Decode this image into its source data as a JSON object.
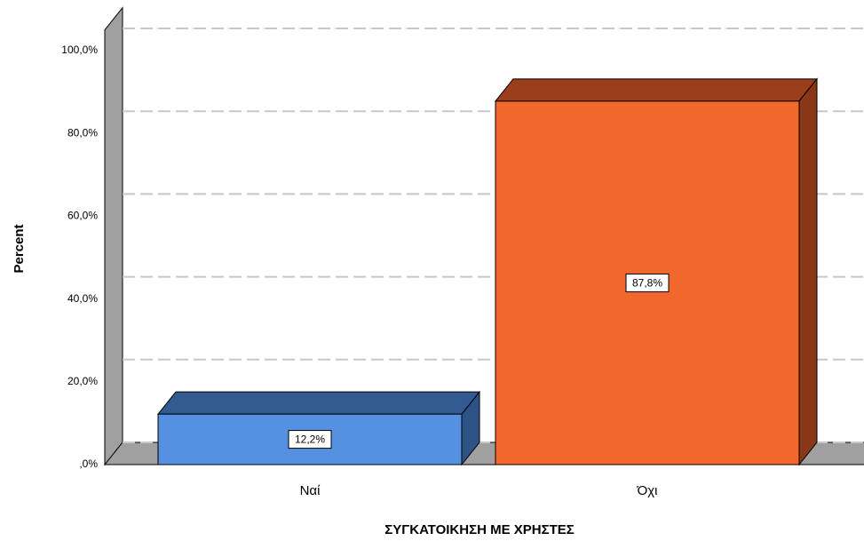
{
  "chart_data": {
    "type": "bar3d",
    "x_label": "ΣΥΓΚΑΤΟΙΚΗΣΗ ΜΕ ΧΡΗΣΤΕΣ",
    "y_label": "Percent",
    "categories": [
      "Ναί",
      "Όχι"
    ],
    "values": [
      12.2,
      87.8
    ],
    "value_labels": [
      "12,2%",
      "87,8%"
    ],
    "colors": [
      {
        "front": "#5591e0",
        "top": "#335b91",
        "side": "#2d5285"
      },
      {
        "front": "#f2682c",
        "top": "#9a3e1b",
        "side": "#8a3718"
      }
    ],
    "ylim": [
      0,
      105
    ],
    "yticks": [
      {
        "value": 0,
        "label": ",0%"
      },
      {
        "value": 20,
        "label": "20,0%"
      },
      {
        "value": 40,
        "label": "40,0%"
      },
      {
        "value": 60,
        "label": "60,0%"
      },
      {
        "value": 80,
        "label": "80,0%"
      },
      {
        "value": 100,
        "label": "100,0%"
      }
    ],
    "grid": true
  }
}
